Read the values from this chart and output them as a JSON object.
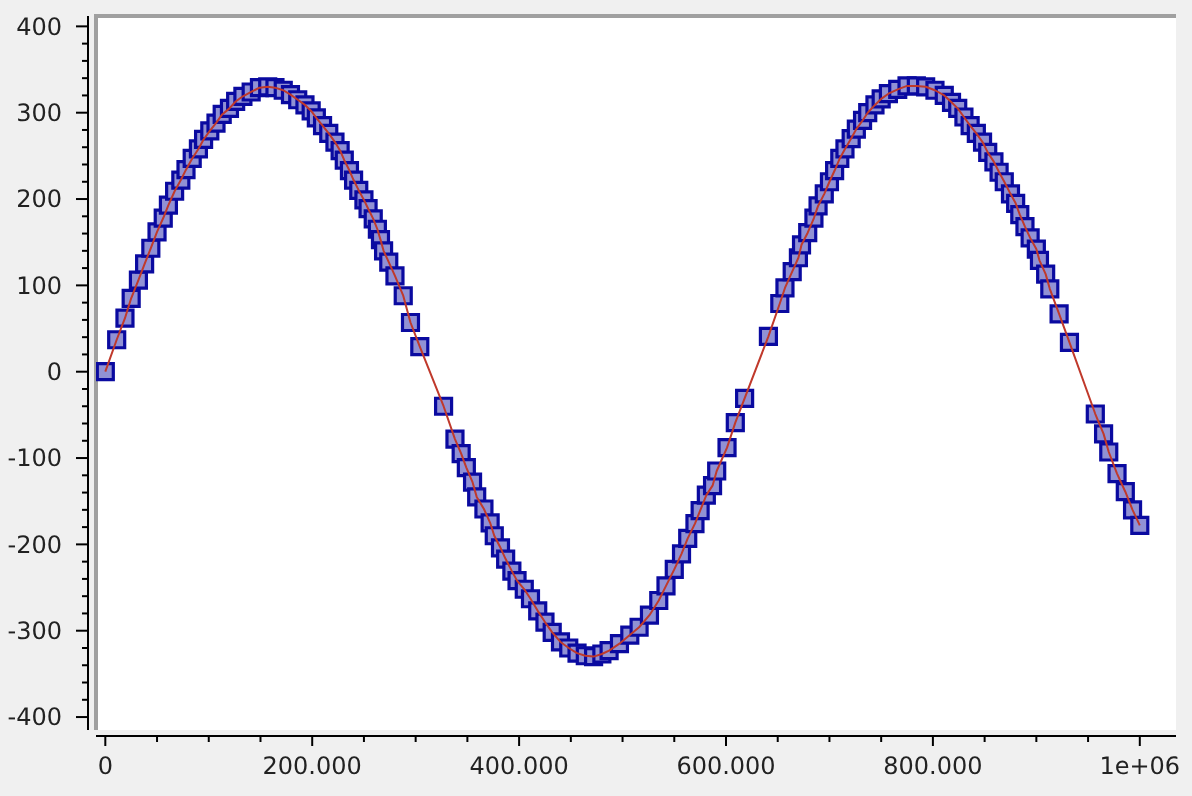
{
  "chart_data": {
    "type": "line",
    "marker": "square",
    "xlim": [
      -9000,
      1035000
    ],
    "ylim": [
      -415,
      412
    ],
    "xticks": [
      0,
      {
        "value": 50000,
        "label": null
      },
      {
        "value": 100000,
        "label": null
      },
      {
        "value": 150000,
        "label": null
      },
      {
        "value": 200000,
        "label": "200.000"
      },
      {
        "value": 250000,
        "label": null
      },
      {
        "value": 300000,
        "label": null
      },
      {
        "value": 350000,
        "label": null
      },
      {
        "value": 400000,
        "label": "400.000"
      },
      {
        "value": 450000,
        "label": null
      },
      {
        "value": 500000,
        "label": null
      },
      {
        "value": 550000,
        "label": null
      },
      {
        "value": 600000,
        "label": "600.000"
      },
      {
        "value": 650000,
        "label": null
      },
      {
        "value": 700000,
        "label": null
      },
      {
        "value": 750000,
        "label": null
      },
      {
        "value": 800000,
        "label": "800.000"
      },
      {
        "value": 850000,
        "label": null
      },
      {
        "value": 900000,
        "label": null
      },
      {
        "value": 950000,
        "label": null
      },
      {
        "value": 1000000,
        "label": "1e+06"
      }
    ],
    "yticks": [
      -400,
      {
        "value": -380,
        "label": null
      },
      {
        "value": -360,
        "label": null
      },
      {
        "value": -340,
        "label": null
      },
      {
        "value": -320,
        "label": null
      },
      -300,
      {
        "value": -280,
        "label": null
      },
      {
        "value": -260,
        "label": null
      },
      {
        "value": -240,
        "label": null
      },
      {
        "value": -220,
        "label": null
      },
      -200,
      {
        "value": -180,
        "label": null
      },
      {
        "value": -160,
        "label": null
      },
      {
        "value": -140,
        "label": null
      },
      {
        "value": -120,
        "label": null
      },
      -100,
      {
        "value": -80,
        "label": null
      },
      {
        "value": -60,
        "label": null
      },
      {
        "value": -40,
        "label": null
      },
      {
        "value": -20,
        "label": null
      },
      0,
      {
        "value": 20,
        "label": null
      },
      {
        "value": 40,
        "label": null
      },
      {
        "value": 60,
        "label": null
      },
      {
        "value": 80,
        "label": null
      },
      100,
      {
        "value": 120,
        "label": null
      },
      {
        "value": 140,
        "label": null
      },
      {
        "value": 160,
        "label": null
      },
      {
        "value": 180,
        "label": null
      },
      200,
      {
        "value": 220,
        "label": null
      },
      {
        "value": 240,
        "label": null
      },
      {
        "value": 260,
        "label": null
      },
      {
        "value": 280,
        "label": null
      },
      300,
      {
        "value": 320,
        "label": null
      },
      {
        "value": 340,
        "label": null
      },
      {
        "value": 360,
        "label": null
      },
      {
        "value": 380,
        "label": null
      },
      400
    ],
    "x": [
      0,
      11000,
      19000,
      25000,
      32000,
      38000,
      44000,
      50000,
      56000,
      61000,
      67000,
      73000,
      78000,
      84000,
      90000,
      95000,
      101000,
      107000,
      113000,
      120000,
      126000,
      133000,
      141000,
      149000,
      157000,
      164000,
      172000,
      179000,
      186000,
      193000,
      199000,
      204000,
      210000,
      216000,
      222000,
      227000,
      231000,
      236000,
      240000,
      245000,
      250000,
      254000,
      259000,
      263000,
      266000,
      269000,
      274000,
      280000,
      288000,
      295000,
      304000,
      327000,
      338000,
      344000,
      349000,
      355000,
      359000,
      366000,
      372000,
      376000,
      382000,
      387000,
      393000,
      398000,
      405000,
      411000,
      418000,
      425000,
      432000,
      440000,
      448000,
      456000,
      464000,
      472000,
      480000,
      487000,
      497000,
      507000,
      516000,
      526000,
      535000,
      542000,
      550000,
      557000,
      563000,
      570000,
      575000,
      581000,
      587000,
      591000,
      601000,
      609000,
      618000,
      641000,
      652000,
      657000,
      664000,
      670000,
      673000,
      679000,
      685000,
      689000,
      695000,
      700000,
      705000,
      710000,
      715000,
      721000,
      726000,
      732000,
      737000,
      744000,
      750000,
      757000,
      766000,
      775000,
      784000,
      793000,
      802000,
      811000,
      818000,
      824000,
      830000,
      836000,
      842000,
      848000,
      853000,
      859000,
      864000,
      869000,
      875000,
      880000,
      884000,
      889000,
      894000,
      900000,
      903000,
      909000,
      913000,
      922000,
      932000,
      957000,
      965000,
      970000,
      978000,
      986000,
      993000,
      1000000
    ],
    "series": [
      {
        "type": "scatter",
        "color": "#0a0aa0",
        "values": [
          0,
          37,
          62,
          85,
          106,
          125,
          143,
          162,
          178,
          193,
          209,
          222,
          234,
          247,
          258,
          269,
          279,
          288,
          298,
          305,
          313,
          319,
          324,
          329,
          330,
          329,
          326,
          321,
          315,
          309,
          302,
          294,
          285,
          276,
          266,
          256,
          245,
          233,
          222,
          210,
          199,
          189,
          177,
          165,
          153,
          140,
          127,
          111,
          88,
          57,
          29,
          -40,
          -78,
          -95,
          -111,
          -128,
          -145,
          -159,
          -175,
          -190,
          -204,
          -217,
          -231,
          -242,
          -252,
          -263,
          -277,
          -290,
          -302,
          -313,
          -320,
          -326,
          -329,
          -330,
          -327,
          -323,
          -315,
          -305,
          -296,
          -282,
          -265,
          -248,
          -229,
          -211,
          -193,
          -176,
          -161,
          -143,
          -132,
          -115,
          -88,
          -59,
          -31,
          41,
          79,
          97,
          116,
          132,
          147,
          161,
          178,
          192,
          206,
          220,
          233,
          247,
          258,
          270,
          281,
          291,
          300,
          309,
          316,
          322,
          327,
          331,
          331,
          330,
          326,
          320,
          312,
          305,
          295,
          285,
          276,
          266,
          254,
          243,
          231,
          220,
          206,
          195,
          182,
          168,
          155,
          142,
          129,
          113,
          96,
          67,
          34,
          -49,
          -72,
          -93,
          -118,
          -139,
          -160,
          -178
        ]
      },
      {
        "marker": "none",
        "color": "#c0392b",
        "values": [
          0,
          37,
          62,
          85,
          106,
          125,
          143,
          162,
          178,
          193,
          209,
          222,
          234,
          247,
          258,
          269,
          279,
          288,
          298,
          305,
          313,
          319,
          324,
          329,
          330,
          329,
          326,
          321,
          315,
          309,
          302,
          294,
          285,
          276,
          266,
          256,
          245,
          233,
          222,
          210,
          199,
          189,
          177,
          165,
          153,
          140,
          127,
          111,
          88,
          57,
          29,
          -40,
          -78,
          -95,
          -111,
          -128,
          -145,
          -159,
          -175,
          -190,
          -204,
          -217,
          -231,
          -242,
          -252,
          -263,
          -277,
          -290,
          -302,
          -313,
          -320,
          -326,
          -329,
          -330,
          -327,
          -323,
          -315,
          -305,
          -296,
          -282,
          -265,
          -248,
          -229,
          -211,
          -193,
          -176,
          -161,
          -143,
          -132,
          -115,
          -88,
          -59,
          -31,
          41,
          79,
          97,
          116,
          132,
          147,
          161,
          178,
          192,
          206,
          220,
          233,
          247,
          258,
          270,
          281,
          291,
          300,
          309,
          316,
          322,
          327,
          331,
          331,
          330,
          326,
          320,
          312,
          305,
          295,
          285,
          276,
          266,
          254,
          243,
          231,
          220,
          206,
          195,
          182,
          168,
          155,
          142,
          129,
          113,
          96,
          67,
          34,
          -49,
          -72,
          -93,
          -118,
          -139,
          -160,
          -178
        ]
      }
    ]
  }
}
